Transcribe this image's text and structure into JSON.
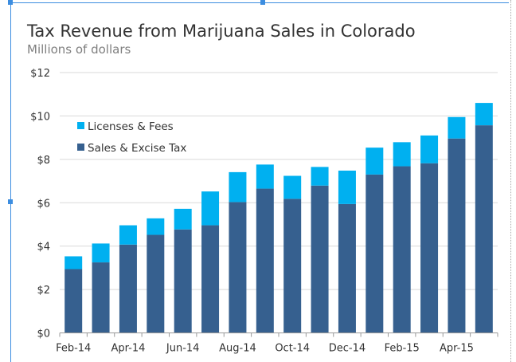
{
  "chart_data": {
    "type": "bar",
    "stacked": true,
    "title": "Tax Revenue from Marijuana Sales in Colorado",
    "subtitle": "Millions of dollars",
    "categories": [
      "Feb-14",
      "Mar-14",
      "Apr-14",
      "May-14",
      "Jun-14",
      "Jul-14",
      "Aug-14",
      "Sep-14",
      "Oct-14",
      "Nov-14",
      "Dec-14",
      "Jan-15",
      "Feb-15",
      "Mar-15",
      "Apr-15",
      "May-15"
    ],
    "x_tick_labels": [
      "Feb-14",
      "Apr-14",
      "Jun-14",
      "Aug-14",
      "Oct-14",
      "Dec-14",
      "Feb-15",
      "Apr-15"
    ],
    "y_tick_labels": [
      "$0",
      "$2",
      "$4",
      "$6",
      "$8",
      "$10",
      "$12"
    ],
    "ylim": [
      0,
      12
    ],
    "grid": true,
    "legend_placement": "top-left",
    "series": [
      {
        "name": "Sales & Excise Tax",
        "color": "#36608f",
        "values": [
          2.94,
          3.25,
          4.07,
          4.52,
          4.77,
          4.96,
          6.03,
          6.65,
          6.18,
          6.79,
          5.94,
          7.3,
          7.68,
          7.82,
          8.96,
          9.57
        ]
      },
      {
        "name": "Licenses & Fees",
        "color": "#00b0f0",
        "values": [
          0.59,
          0.87,
          0.89,
          0.76,
          0.95,
          1.56,
          1.38,
          1.11,
          1.06,
          0.86,
          1.54,
          1.24,
          1.11,
          1.28,
          0.99,
          1.03
        ]
      }
    ]
  }
}
